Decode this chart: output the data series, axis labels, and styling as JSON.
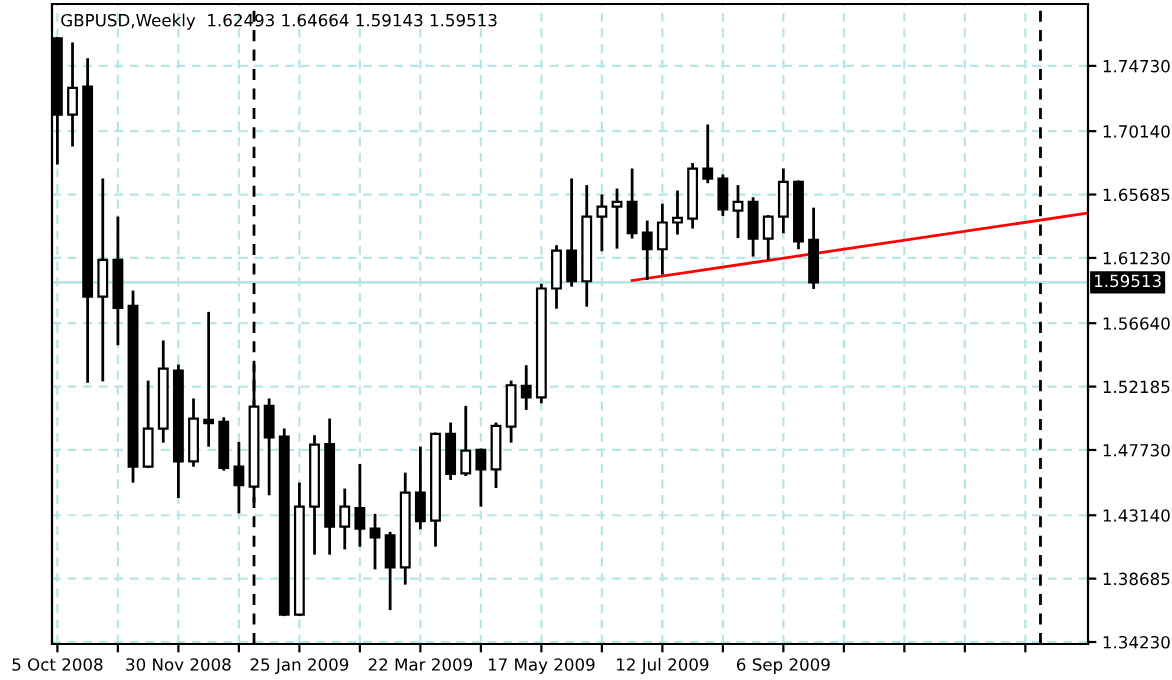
{
  "chart_data": {
    "type": "candlestick",
    "title": "GBPUSD,Weekly  1.62493 1.64664 1.59143 1.59513",
    "x": [
      "2008-10-05",
      "2008-10-12",
      "2008-10-19",
      "2008-10-26",
      "2008-11-02",
      "2008-11-09",
      "2008-11-16",
      "2008-11-23",
      "2008-11-30",
      "2008-12-07",
      "2008-12-14",
      "2008-12-21",
      "2008-12-28",
      "2009-01-04",
      "2009-01-11",
      "2009-01-18",
      "2009-01-25",
      "2009-02-01",
      "2009-02-08",
      "2009-02-15",
      "2009-02-22",
      "2009-03-01",
      "2009-03-08",
      "2009-03-15",
      "2009-03-22",
      "2009-03-29",
      "2009-04-05",
      "2009-04-12",
      "2009-04-19",
      "2009-04-26",
      "2009-05-03",
      "2009-05-10",
      "2009-05-17",
      "2009-05-24",
      "2009-05-31",
      "2009-06-07",
      "2009-06-14",
      "2009-06-21",
      "2009-06-28",
      "2009-07-05",
      "2009-07-12",
      "2009-07-19",
      "2009-07-26",
      "2009-08-02",
      "2009-08-09",
      "2009-08-16",
      "2009-08-23",
      "2009-08-30",
      "2009-09-06",
      "2009-09-13",
      "2009-09-20"
    ],
    "ohlc": [
      [
        1.7666,
        1.7666,
        1.6789,
        1.7131
      ],
      [
        1.7131,
        1.7628,
        1.6916,
        1.7319
      ],
      [
        1.7328,
        1.7516,
        1.5256,
        1.5851
      ],
      [
        1.5851,
        1.6672,
        1.5265,
        1.6109
      ],
      [
        1.6109,
        1.6404,
        1.5519,
        1.5772
      ],
      [
        1.5786,
        1.5884,
        1.4553,
        1.4656
      ],
      [
        1.4656,
        1.5251,
        1.4656,
        1.4923
      ],
      [
        1.4923,
        1.5533,
        1.4834,
        1.5345
      ],
      [
        1.5331,
        1.5364,
        1.4445,
        1.4693
      ],
      [
        1.4693,
        1.5125,
        1.4665,
        1.4993
      ],
      [
        1.4984,
        1.5734,
        1.4806,
        1.4961
      ],
      [
        1.497,
        1.4993,
        1.4637,
        1.4647
      ],
      [
        1.4656,
        1.482,
        1.4337,
        1.4525
      ],
      [
        1.4515,
        1.5364,
        1.4412,
        1.5078
      ],
      [
        1.5083,
        1.5125,
        1.4464,
        1.4862
      ],
      [
        1.4867,
        1.4914,
        1.3615,
        1.3615
      ],
      [
        1.3615,
        1.4534,
        1.3615,
        1.4375
      ],
      [
        1.4375,
        1.4867,
        1.4047,
        1.4811
      ],
      [
        1.4815,
        1.4984,
        1.4047,
        1.4234
      ],
      [
        1.4234,
        1.4492,
        1.4084,
        1.4375
      ],
      [
        1.4365,
        1.4665,
        1.4103,
        1.422
      ],
      [
        1.422,
        1.4314,
        1.3943,
        1.4159
      ],
      [
        1.4173,
        1.4187,
        1.3657,
        1.3948
      ],
      [
        1.3948,
        1.4604,
        1.3836,
        1.4473
      ],
      [
        1.4473,
        1.4787,
        1.4225,
        1.4272
      ],
      [
        1.4276,
        1.4886,
        1.4103,
        1.4886
      ],
      [
        1.4886,
        1.4956,
        1.4572,
        1.4604
      ],
      [
        1.4609,
        1.5073,
        1.46,
        1.4768
      ],
      [
        1.4773,
        1.4773,
        1.4384,
        1.4637
      ],
      [
        1.4637,
        1.4956,
        1.4515,
        1.4942
      ],
      [
        1.4937,
        1.5251,
        1.4834,
        1.5228
      ],
      [
        1.5223,
        1.5359,
        1.5064,
        1.5143
      ],
      [
        1.5143,
        1.5931,
        1.5111,
        1.5908
      ],
      [
        1.5908,
        1.6203,
        1.5776,
        1.6175
      ],
      [
        1.6175,
        1.6672,
        1.5931,
        1.5959
      ],
      [
        1.5959,
        1.6625,
        1.579,
        1.6414
      ],
      [
        1.6414,
        1.6559,
        1.618,
        1.6484
      ],
      [
        1.6484,
        1.6601,
        1.6198,
        1.6517
      ],
      [
        1.6517,
        1.6742,
        1.6269,
        1.6297
      ],
      [
        1.6301,
        1.6376,
        1.5978,
        1.6184
      ],
      [
        1.6184,
        1.6494,
        1.6015,
        1.6372
      ],
      [
        1.6372,
        1.6587,
        1.6297,
        1.6404
      ],
      [
        1.64,
        1.678,
        1.6339,
        1.6751
      ],
      [
        1.6751,
        1.7051,
        1.6658,
        1.6681
      ],
      [
        1.6681,
        1.67,
        1.6428,
        1.6465
      ],
      [
        1.6456,
        1.6625,
        1.6273,
        1.6517
      ],
      [
        1.6517,
        1.654,
        1.6142,
        1.6259
      ],
      [
        1.6259,
        1.6414,
        1.6119,
        1.6414
      ],
      [
        1.6414,
        1.6742,
        1.6306,
        1.6658
      ],
      [
        1.6658,
        1.6658,
        1.6194,
        1.624
      ],
      [
        1.62493,
        1.64664,
        1.59143,
        1.59513
      ]
    ],
    "series": [
      {
        "type": "line",
        "color": "#ff0000",
        "x": [
          "2009-06-28",
          "2010-01-24"
        ],
        "values": [
          1.5964,
          1.6436
        ]
      }
    ],
    "ref_lines": [
      {
        "axis": "y",
        "value": 1.59513,
        "label": "1.59513",
        "color": "#b8e6e6",
        "line_style": "solid"
      },
      {
        "axis": "x",
        "value": "2009-01-04",
        "label": null,
        "color": "#000000",
        "line_style": "dashed"
      },
      {
        "axis": "x",
        "value": "2010-01-03",
        "label": null,
        "color": "#000000",
        "line_style": "dashed"
      }
    ],
    "xlim": [
      "2008-10-02T12:00",
      "2010-01-25"
    ],
    "xticks": [
      {
        "value": "2008-10-05",
        "label": "5 Oct 2008"
      },
      {
        "value": "2008-11-02",
        "label": null
      },
      {
        "value": "2008-11-30",
        "label": "30 Nov 2008"
      },
      {
        "value": "2008-12-28",
        "label": null
      },
      {
        "value": "2009-01-25",
        "label": "25 Jan 2009"
      },
      {
        "value": "2009-02-22",
        "label": null
      },
      {
        "value": "2009-03-22",
        "label": "22 Mar 2009"
      },
      {
        "value": "2009-04-19",
        "label": null
      },
      {
        "value": "2009-05-17",
        "label": "17 May 2009"
      },
      {
        "value": "2009-06-14",
        "label": null
      },
      {
        "value": "2009-07-12",
        "label": "12 Jul 2009"
      },
      {
        "value": "2009-08-09",
        "label": null
      },
      {
        "value": "2009-09-06",
        "label": "6 Sep 2009"
      },
      {
        "value": "2009-10-04",
        "label": null
      },
      {
        "value": "2009-11-01",
        "label": null
      },
      {
        "value": "2009-11-29",
        "label": null
      },
      {
        "value": "2009-12-27",
        "label": null
      }
    ],
    "ylim": [
      1.3409,
      1.7908
    ],
    "yticks": [
      {
        "value": 1.3423,
        "label": "1.34230"
      },
      1.38685,
      {
        "value": 1.4314,
        "label": "1.43140"
      },
      {
        "value": 1.4773,
        "label": "1.47730"
      },
      1.52185,
      {
        "value": 1.5664,
        "label": "1.56640"
      },
      {
        "value": 1.6123,
        "label": "1.61230"
      },
      1.65685,
      {
        "value": 1.7014,
        "label": "1.70140"
      },
      {
        "value": 1.7473,
        "label": "1.74730"
      }
    ],
    "grid": true,
    "legend": false,
    "marker": "none",
    "line_style": "solid"
  }
}
